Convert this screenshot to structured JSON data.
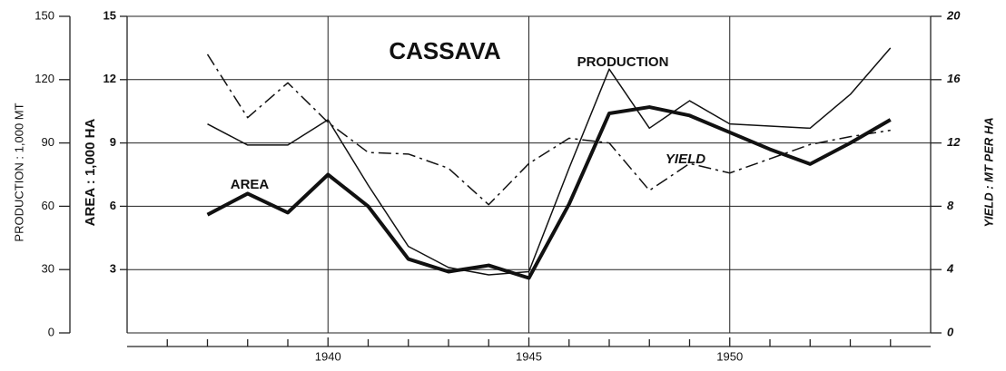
{
  "chart_data": {
    "type": "line",
    "title": "CASSAVA",
    "ylabel": "PRODUCTION : 1,000 MT",
    "y2label": "AREA : 1,000 HA",
    "y3label": "YIELD : MT PER HA",
    "x": [
      1937,
      1938,
      1939,
      1940,
      1941,
      1942,
      1943,
      1944,
      1945,
      1946,
      1947,
      1948,
      1949,
      1950,
      1951,
      1952,
      1953,
      1954
    ],
    "xlim": [
      1935,
      1955
    ],
    "xticks": [
      1940,
      1945,
      1950
    ],
    "xminorticks": [
      1936,
      1937,
      1938,
      1939,
      1941,
      1942,
      1943,
      1944,
      1946,
      1947,
      1948,
      1949,
      1951,
      1952,
      1953,
      1954
    ],
    "ylim": [
      0,
      150
    ],
    "yticks": [
      0,
      30,
      60,
      90,
      120,
      150
    ],
    "y2lim": [
      0,
      15
    ],
    "y2ticks": [
      3,
      6,
      9,
      12,
      15
    ],
    "y3lim": [
      0,
      20
    ],
    "y3ticks": [
      0,
      4,
      8,
      12,
      16,
      20
    ],
    "grid": true,
    "series": [
      {
        "name": "AREA",
        "axis": "y2",
        "color": "#111111",
        "style": "solid",
        "width": 4,
        "values": [
          5.6,
          6.6,
          5.7,
          7.5,
          6.0,
          3.5,
          2.9,
          3.2,
          2.6,
          6.1,
          10.4,
          10.7,
          10.3,
          9.5,
          8.7,
          8.0,
          9.0,
          10.1
        ]
      },
      {
        "name": "PRODUCTION",
        "axis": "y",
        "color": "#111111",
        "style": "solid",
        "width": 1.5,
        "values": [
          99,
          89,
          89,
          101,
          70,
          41,
          31,
          27.5,
          29,
          78,
          125,
          97,
          110,
          99,
          98,
          97,
          113,
          135
        ]
      },
      {
        "name": "YIELD",
        "axis": "y3",
        "color": "#111111",
        "style": "dashdot",
        "width": 1.5,
        "values": [
          17.6,
          13.6,
          15.8,
          13.3,
          11.4,
          11.3,
          10.4,
          8.1,
          10.7,
          12.3,
          12.0,
          9.0,
          10.7,
          10.1,
          11.0,
          11.9,
          12.4,
          12.8
        ]
      }
    ]
  }
}
